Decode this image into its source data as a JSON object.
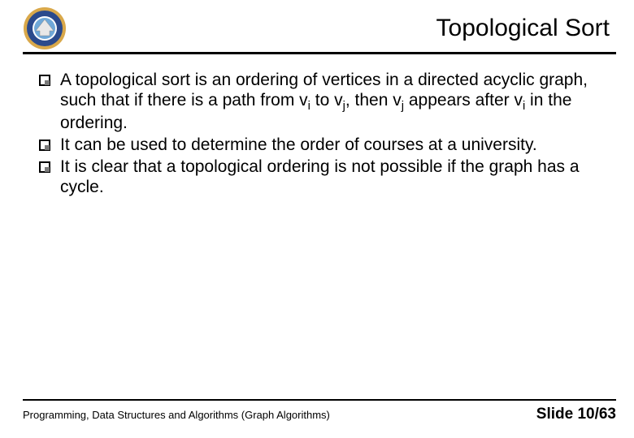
{
  "header": {
    "title": "Topological Sort",
    "logo": {
      "outer_color": "#d9a84a",
      "mid_color": "#2b4a8c",
      "inner_color": "#ffffff",
      "accent_color": "#d0d0d0"
    }
  },
  "bullets": [
    {
      "html": "A topological sort is an ordering of vertices in a directed acyclic graph, such that if there is a path from v<sub>i</sub> to v<sub>j</sub>, then v<sub>j</sub> appears after v<sub>i</sub> in the ordering."
    },
    {
      "html": "It can be used to determine the order of courses at a university."
    },
    {
      "html": "It is clear that a topological ordering is not possible if the graph has a cycle."
    }
  ],
  "footer": {
    "left": "Programming, Data Structures and Algorithms  (Graph Algorithms)",
    "right": "Slide 10/63"
  },
  "style": {
    "background": "#ffffff",
    "text_color": "#000000",
    "rule_color": "#000000",
    "title_fontsize": 30,
    "body_fontsize": 21,
    "footer_left_fontsize": 13,
    "footer_right_fontsize": 19
  }
}
